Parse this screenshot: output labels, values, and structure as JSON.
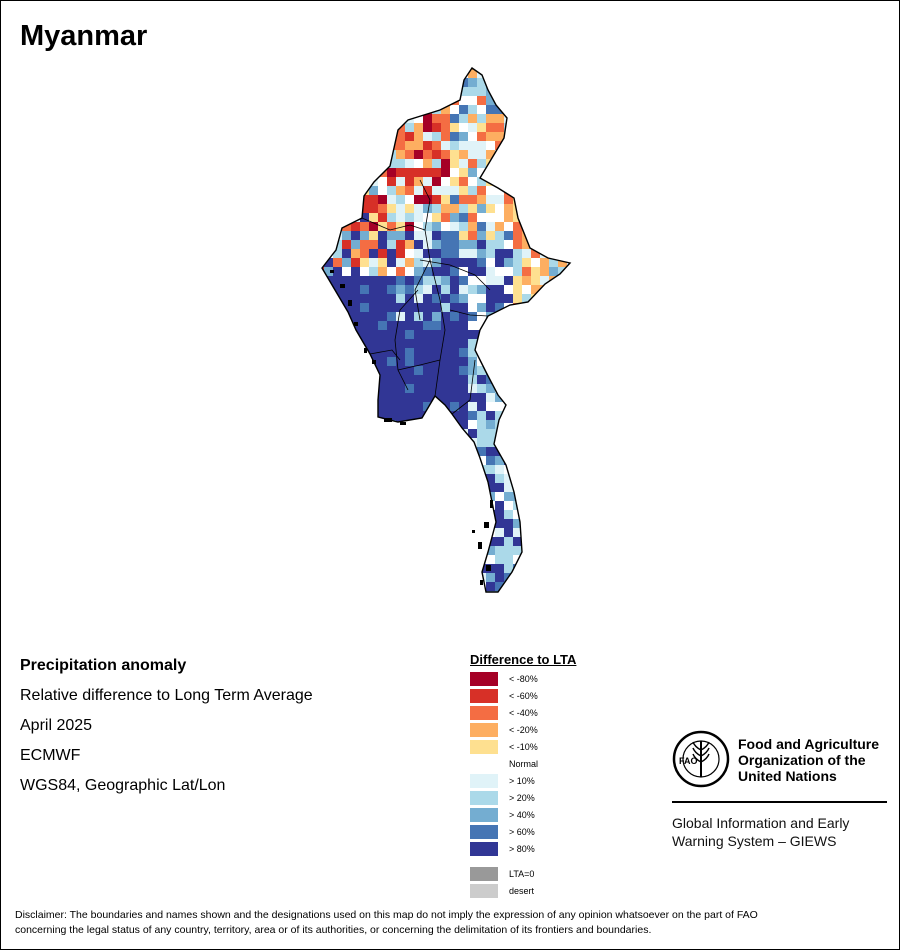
{
  "title": "Myanmar",
  "info": {
    "product": "Precipitation anomaly",
    "description": "Relative difference to Long Term Average",
    "period": "April 2025",
    "source": "ECMWF",
    "projection": "WGS84, Geographic Lat/Lon"
  },
  "legend": {
    "title": "Difference to LTA",
    "classes": [
      {
        "label": "< -80%",
        "color": "#a50026"
      },
      {
        "label": "< -60%",
        "color": "#d73027"
      },
      {
        "label": "< -40%",
        "color": "#f46d43"
      },
      {
        "label": "< -20%",
        "color": "#fdae61"
      },
      {
        "label": "< -10%",
        "color": "#fee090"
      },
      {
        "label": "Normal",
        "color": "#ffffff"
      },
      {
        "label": "> 10%",
        "color": "#e0f3f8"
      },
      {
        "label": "> 20%",
        "color": "#abd9e9"
      },
      {
        "label": "> 40%",
        "color": "#74add1"
      },
      {
        "label": "> 60%",
        "color": "#4575b4"
      },
      {
        "label": "> 80%",
        "color": "#313695"
      }
    ],
    "extra": [
      {
        "label": "LTA=0",
        "color": "#999999"
      },
      {
        "label": "desert",
        "color": "#cccccc"
      }
    ]
  },
  "logo": {
    "acronym": "FAO",
    "motto": "FIAT PANIS",
    "org_name_line1": "Food and Agriculture",
    "org_name_line2": "Organization of the",
    "org_name_line3": "United Nations",
    "giews_line1": "Global Information and Early",
    "giews_line2": "Warning System – GIEWS"
  },
  "disclaimer_line1": "Disclaimer: The boundaries and names shown and the designations used on this map do not imply the expression of any opinion whatsoever on the part of FAO",
  "disclaimer_line2": "concerning the legal status of any country, territory, area or of its authorities, or concerning the delimitation of its frontiers and boundaries."
}
